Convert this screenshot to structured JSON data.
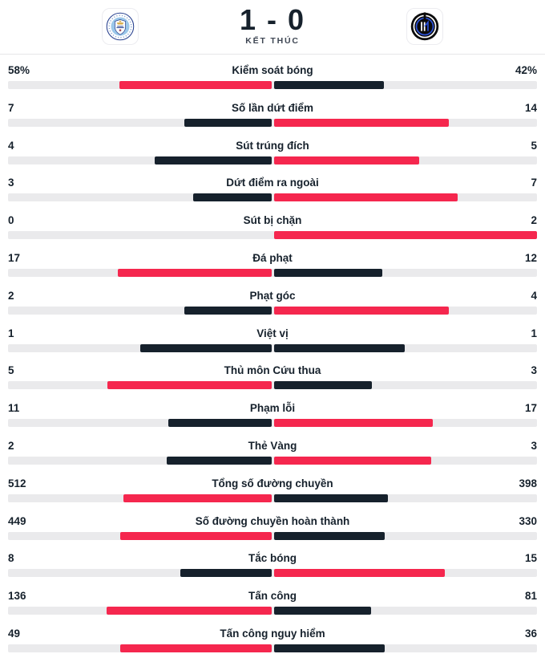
{
  "colors": {
    "accent_red": "#f5274e",
    "dark_navy": "#16212c",
    "bar_track": "#eaeaec",
    "status_text": "#3e4653",
    "divider": "#e7e7e9",
    "city_sky_blue": "#9bc7e9",
    "city_navy": "#27408f",
    "city_gold": "#d7a83f",
    "city_red": "#a33b4a",
    "inter_black": "#0b0b0b",
    "inter_blue": "#2b51d8",
    "white": "#ffffff"
  },
  "header": {
    "score": "1 - 0",
    "status": "KẾT THÚC",
    "home_team": "Manchester City",
    "away_team": "Inter",
    "home_logo_icon": "manchester-city-crest-icon",
    "away_logo_icon": "inter-milan-crest-icon"
  },
  "chart_data": {
    "type": "bar",
    "subtype": "paired horizontal match-stats comparison; each side's bar grows outward from the center of the track",
    "title": "1 - 0",
    "status_label": "KẾT THÚC",
    "teams": [
      "Manchester City",
      "Inter"
    ],
    "categories": [
      "Kiểm soát bóng",
      "Số lần dứt điểm",
      "Sút trúng đích",
      "Dứt điểm ra ngoài",
      "Sút bị chặn",
      "Đá phạt",
      "Phạt góc",
      "Việt vị",
      "Thủ môn Cứu thua",
      "Phạm lỗi",
      "Thẻ Vàng",
      "Tổng số đường chuyền",
      "Số đường chuyền hoàn thành",
      "Tắc bóng",
      "Tấn công",
      "Tấn công nguy hiểm"
    ],
    "series": [
      {
        "name": "Manchester City",
        "values": [
          58,
          7,
          4,
          3,
          0,
          17,
          2,
          1,
          5,
          11,
          2,
          512,
          449,
          8,
          136,
          49
        ],
        "labels": [
          "58%",
          "7",
          "4",
          "3",
          "0",
          "17",
          "2",
          "1",
          "5",
          "11",
          "2",
          "512",
          "449",
          "8",
          "136",
          "49"
        ]
      },
      {
        "name": "Inter",
        "values": [
          42,
          14,
          5,
          7,
          2,
          12,
          4,
          1,
          3,
          17,
          3,
          398,
          330,
          15,
          81,
          36
        ],
        "labels": [
          "42%",
          "14",
          "5",
          "7",
          "2",
          "12",
          "4",
          "1",
          "3",
          "17",
          "3",
          "398",
          "330",
          "15",
          "81",
          "36"
        ]
      }
    ],
    "legend": "none",
    "bar_rule": "side bar length = value/(home+away) of the half-track width; the larger value is colored red #f5274e, the smaller dark navy #16212c; ties are both dark navy"
  }
}
